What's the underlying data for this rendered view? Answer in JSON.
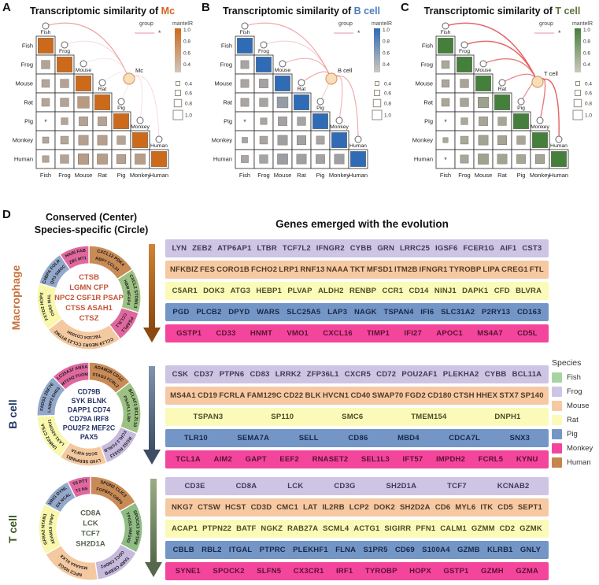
{
  "panels": {
    "a": "A",
    "b": "B",
    "c": "C",
    "d": "D"
  },
  "chart_data": [
    {
      "type": "heatmap",
      "panel": "A",
      "title_prefix": "Transcriptomic similarity of",
      "cell_type": "Mc",
      "accent": "#d4631c",
      "theme": "#cc6a1c",
      "species": [
        "Fish",
        "Frog",
        "Mouse",
        "Rat",
        "Pig",
        "Monkey",
        "Human"
      ],
      "matrix": [
        [
          1.0
        ],
        [
          0.45,
          1.0
        ],
        [
          0.4,
          0.45,
          1.0
        ],
        [
          0.4,
          0.45,
          0.7,
          1.0
        ],
        [
          0.12,
          0.32,
          0.48,
          0.48,
          1.0
        ],
        [
          0.28,
          0.4,
          0.55,
          0.55,
          0.45,
          1.0
        ],
        [
          0.3,
          0.45,
          0.62,
          0.6,
          0.5,
          0.6,
          1.0
        ]
      ],
      "starred": [
        [
          4,
          0
        ]
      ],
      "node_label": "Mc",
      "node_pos": [
        164,
        100
      ],
      "link_strengths": [
        0.55,
        0.2,
        0.12,
        0.1,
        0.12,
        0.15,
        0.2
      ],
      "legend": {
        "group_label": "group",
        "group_marker": "*",
        "scale_label": "mantelR",
        "color_ticks": [
          "1.0",
          "0.8",
          "0.6",
          "0.4"
        ],
        "size_ticks": [
          "0.4",
          "0.6",
          "0.8",
          "1.0"
        ]
      }
    },
    {
      "type": "heatmap",
      "panel": "B",
      "title_prefix": "Transcriptomic similarity of",
      "cell_type": "B cell",
      "accent": "#4a7cc0",
      "theme": "#2f6cb5",
      "species": [
        "Fish",
        "Frog",
        "Mouse",
        "Rat",
        "Pig",
        "Monkey",
        "Human"
      ],
      "matrix": [
        [
          1.0
        ],
        [
          0.42,
          1.0
        ],
        [
          0.42,
          0.48,
          1.0
        ],
        [
          0.42,
          0.45,
          0.65,
          1.0
        ],
        [
          0.12,
          0.3,
          0.48,
          0.45,
          1.0
        ],
        [
          0.22,
          0.4,
          0.55,
          0.5,
          0.42,
          1.0
        ],
        [
          0.35,
          0.45,
          0.6,
          0.55,
          0.48,
          0.55,
          1.0
        ]
      ],
      "starred": [
        [
          4,
          0
        ]
      ],
      "node_label": "B cell",
      "node_pos": [
        168,
        100
      ],
      "link_strengths": [
        0.5,
        0.3,
        0.45,
        0.5,
        0.3,
        0.45,
        0.5
      ],
      "legend": {
        "group_label": "group",
        "group_marker": "*",
        "scale_label": "mantelR",
        "color_ticks": [
          "1.0",
          "0.8",
          "0.6",
          "0.4"
        ],
        "size_ticks": [
          "0.4",
          "0.6",
          "0.8",
          "1.0"
        ]
      }
    },
    {
      "type": "heatmap",
      "panel": "C",
      "title_prefix": "Transcriptomic similarity of",
      "cell_type": "T cell",
      "accent": "#5e7140",
      "theme": "#44803c",
      "species": [
        "Fish",
        "Frog",
        "Mouse",
        "Rat",
        "Pig",
        "Monkey",
        "Human"
      ],
      "matrix": [
        [
          1.0
        ],
        [
          0.4,
          1.0
        ],
        [
          0.38,
          0.45,
          1.0
        ],
        [
          0.4,
          0.45,
          0.62,
          1.0
        ],
        [
          0.12,
          0.32,
          0.48,
          0.45,
          1.0
        ],
        [
          0.18,
          0.4,
          0.55,
          0.5,
          0.45,
          1.0
        ],
        [
          0.12,
          0.42,
          0.6,
          0.55,
          0.48,
          0.5,
          1.0
        ]
      ],
      "starred": [
        [
          4,
          0
        ],
        [
          6,
          0
        ]
      ],
      "node_label": "T cell",
      "node_pos": [
        175,
        104
      ],
      "link_strengths": [
        0.85,
        0.85,
        0.75,
        0.7,
        0.65,
        0.75,
        0.85
      ],
      "legend": {
        "group_label": "group",
        "group_marker": "*",
        "scale_label": "mantelR",
        "color_ticks": [
          "1.0",
          "0.8",
          "0.6",
          "0.4"
        ],
        "size_ticks": [
          "0.4",
          "0.6",
          "0.8",
          "1.0"
        ]
      }
    }
  ],
  "panel_d": {
    "left_header_line1": "Conserved (Center)",
    "left_header_line2": "Species-specific (Circle)",
    "right_header": "Genes emerged with the evolution",
    "species_legend": {
      "title": "Species",
      "items": [
        {
          "name": "Fish",
          "color": "#a9d3a2"
        },
        {
          "name": "Frog",
          "color": "#cec4e4"
        },
        {
          "name": "Mouse",
          "color": "#f6c9a2"
        },
        {
          "name": "Rat",
          "color": "#fbfab8"
        },
        {
          "name": "Pig",
          "color": "#7496c6"
        },
        {
          "name": "Monkey",
          "color": "#f4459d"
        },
        {
          "name": "Human",
          "color": "#c5854c"
        }
      ]
    },
    "cell_types": [
      {
        "name": "Macrophage",
        "label_color": "#c8743c",
        "center_color": "#c4563a",
        "center_genes": [
          "CTSB",
          "LGMN  CFP",
          "NPC2 CSF1R PSAP",
          "CTSS  ASAH1",
          "CTSZ"
        ],
        "arrow_colors": [
          "#cf8434",
          "#8a4a10"
        ],
        "ring": [
          {
            "color": "#c98b55",
            "outer": "CXCL12  PDK4",
            "inner": "RBP7 CCL24",
            "start": 0,
            "end": 57
          },
          {
            "color": "#9cc183",
            "outer": "CXCL2 STOML3",
            "inner": "HBM MFAP4",
            "start": 57,
            "end": 107
          },
          {
            "color": "#e0689f",
            "outer": "PSAPL1",
            "inner": "CCL3L1",
            "start": 107,
            "end": 143
          },
          {
            "color": "#f4c9a0",
            "outer": "CCL19 NEGR1 CCL23 IFITM2",
            "inner": "TBC1D4 CD300H",
            "start": 143,
            "end": 232
          },
          {
            "color": "#f8f7ac",
            "outer": "FXYD2  HOPX",
            "inner": "OSR2  MAL",
            "start": 232,
            "end": 286
          },
          {
            "color": "#93a8cb",
            "outer": "C4BPA FOLR1",
            "inner": "AQP3 SMOC1",
            "start": 286,
            "end": 326
          },
          {
            "color": "#e0689f",
            "outer": "JCHAIN FABP4",
            "inner": "MZB1 MT1E",
            "start": 326,
            "end": 360
          }
        ],
        "rows": [
          {
            "color": "#cec4e4",
            "text_color": "#3f3b55",
            "genes": [
              "LYN",
              "ZEB2",
              "ATP6AP1",
              "LTBR",
              "TCF7L2",
              "IFNGR2",
              "CYBB",
              "GRN",
              "LRRC25",
              "IGSF6",
              "FCER1G",
              "AIF1",
              "CST3"
            ]
          },
          {
            "color": "#f6c9a2",
            "text_color": "#4f3a28",
            "genes": [
              "NFKBIZ",
              "FES",
              "CORO1B",
              "FCHO2",
              "LRP1",
              "RNF13",
              "NAAA",
              "TKT",
              "MFSD1",
              "ITM2B",
              "IFNGR1",
              "TYROBP",
              "LIPA",
              "CREG1",
              "FTL"
            ]
          },
          {
            "color": "#fbfab8",
            "text_color": "#4c4c28",
            "genes": [
              "C5AR1",
              "DOK3",
              "ATG3",
              "HEBP1",
              "PLVAP",
              "ALDH2",
              "RENBP",
              "CCR1",
              "CD14",
              "NINJ1",
              "DAPK1",
              "CFD",
              "BLVRA"
            ]
          },
          {
            "color": "#7496c6",
            "text_color": "#182848",
            "genes": [
              "PGD",
              "PLCB2",
              "DPYD",
              "WARS",
              "SLC25A5",
              "LAP3",
              "NAGK",
              "TSPAN4",
              "IFI6",
              "SLC31A2",
              "P2RY13",
              "CD163"
            ]
          },
          {
            "color": "#f4459d",
            "text_color": "#571232",
            "genes": [
              "GSTP1",
              "CD33",
              "HNMT",
              "VMO1",
              "CXCL16",
              "TIMP1",
              "IFI27",
              "APOC1",
              "MS4A7",
              "CD5L"
            ]
          }
        ]
      },
      {
        "name": "B cell",
        "label_color": "#203864",
        "center_color": "#27356b",
        "center_genes": [
          "CD79B",
          "SYK  BLNK",
          "DAPP1  CD74",
          "CD79A  IRF8",
          "POU2F2 MEF2C",
          "PAX5"
        ],
        "arrow_colors": [
          "#8193ad",
          "#3d4d66"
        ],
        "ring": [
          {
            "color": "#c98b55",
            "outer": "ADAM28  CD1C",
            "inner": "STAG3 FCRL2",
            "start": 0,
            "end": 52
          },
          {
            "color": "#9cc183",
            "outer": "BCLAF1 BCL2L10",
            "inner": "PSAPL1  LBP",
            "start": 52,
            "end": 112
          },
          {
            "color": "#c6badd",
            "outer": "RGS2 RGS13",
            "inner": "FCRL3 FCRLB",
            "start": 112,
            "end": 160
          },
          {
            "color": "#f4c9a0",
            "outer": "LY6D SERPINB1",
            "inner": "SCG5 H3F3A",
            "start": 160,
            "end": 214
          },
          {
            "color": "#f8f7ac",
            "outer": "UHRF2 CTSA",
            "inner": "LAX1 ADGRV1",
            "start": 214,
            "end": 268
          },
          {
            "color": "#93a8cb",
            "outer": "FADS3 ZNF76",
            "inner": "LAMP3 EHD3",
            "start": 268,
            "end": 316
          },
          {
            "color": "#e0689f",
            "outer": "SLC25A37 ANXA4",
            "inner": "MTCH2 FUOM",
            "start": 316,
            "end": 360
          }
        ],
        "rows": [
          {
            "color": "#cec4e4",
            "text_color": "#3f3b55",
            "genes": [
              "CSK",
              "CD37",
              "PTPN6",
              "CD83",
              "LRRK2",
              "ZFP36L1",
              "CXCR5",
              "CD72",
              "POU2AF1",
              "PLEKHA2",
              "CYBB",
              "BCL11A"
            ]
          },
          {
            "color": "#f6c9a2",
            "text_color": "#4f3a28",
            "genes": [
              "MS4A1",
              "CD19",
              "FCRLA",
              "FAM129C",
              "CD22",
              "BLK",
              "HVCN1",
              "CD40",
              "SWAP70",
              "FGD2",
              "CD180",
              "CTSH",
              "HHEX",
              "STX7",
              "SP140"
            ]
          },
          {
            "color": "#fbfab8",
            "text_color": "#4c4c28",
            "genes": [
              "TSPAN3",
              "SP110",
              "SMC6",
              "TMEM154",
              "DNPH1"
            ]
          },
          {
            "color": "#7496c6",
            "text_color": "#182848",
            "genes": [
              "TLR10",
              "SEMA7A",
              "SELL",
              "CD86",
              "MBD4",
              "CDCA7L",
              "SNX3"
            ]
          },
          {
            "color": "#f4459d",
            "text_color": "#571232",
            "genes": [
              "TCL1A",
              "AIM2",
              "GAPT",
              "EEF2",
              "RNASET2",
              "SEL1L3",
              "IFT57",
              "IMPDH2",
              "FCRL5",
              "KYNU"
            ]
          }
        ]
      },
      {
        "name": "T cell",
        "label_color": "#3c5a23",
        "center_color": "#55664f",
        "center_genes": [
          "CD8A",
          "LCK",
          "TCF7",
          "SH2D1A"
        ],
        "arrow_colors": [
          "#9aad85",
          "#55684a"
        ],
        "ring": [
          {
            "color": "#c98b55",
            "outer": "SPON2  CLIC3",
            "inner": "FGFBP2 GBP5",
            "start": 0,
            "end": 60
          },
          {
            "color": "#8fbc83",
            "outer": "SPOCK3 SFTPB",
            "inner": "TPGS1 HMGN2",
            "start": 60,
            "end": 118
          },
          {
            "color": "#c6badd",
            "outer": "TARP CEBPB",
            "inner": "ODC1 CNDP2",
            "start": 118,
            "end": 172
          },
          {
            "color": "#f4c9a0",
            "outer": "NPC2  NSG2",
            "inner": "MS4A6A KLK8",
            "start": 172,
            "end": 240
          },
          {
            "color": "#f8f7ac",
            "outer": "GFRA2 NTAN1",
            "inner": "ADAM19 TPMT",
            "start": 240,
            "end": 298
          },
          {
            "color": "#93a8cb",
            "outer": "PVRIG DYNLT3",
            "inner": "RDX NCALD",
            "start": 298,
            "end": 334
          },
          {
            "color": "#e0689f",
            "outer": "CST6 PTTG1",
            "inner": "BST2 NSG1",
            "start": 334,
            "end": 360
          }
        ],
        "rows": [
          {
            "color": "#cec4e4",
            "text_color": "#3f3b55",
            "genes": [
              "CD3E",
              "CD8A",
              "LCK",
              "CD3G",
              "SH2D1A",
              "TCF7",
              "KCNAB2"
            ]
          },
          {
            "color": "#f6c9a2",
            "text_color": "#4f3a28",
            "genes": [
              "NKG7",
              "CTSW",
              "HCST",
              "CD3D",
              "CMC1",
              "LAT",
              "IL2RB",
              "LCP2",
              "DOK2",
              "SH2D2A",
              "CD6",
              "MYL6",
              "ITK",
              "CD5",
              "SEPT1"
            ]
          },
          {
            "color": "#fbfab8",
            "text_color": "#4c4c28",
            "genes": [
              "ACAP1",
              "PTPN22",
              "BATF",
              "NGKZ",
              "RAB27A",
              "SCML4",
              "ACTG1",
              "SIGIRR",
              "PFN1",
              "CALM1",
              "GZMM",
              "CD2",
              "GZMK"
            ]
          },
          {
            "color": "#7496c6",
            "text_color": "#182848",
            "genes": [
              "CBLB",
              "RBL2",
              "ITGAL",
              "PTPRC",
              "PLEKHF1",
              "FLNA",
              "S1PR5",
              "CD69",
              "S100A4",
              "GZMB",
              "KLRB1",
              "GNLY"
            ]
          },
          {
            "color": "#f4459d",
            "text_color": "#571232",
            "genes": [
              "SYNE1",
              "SPOCK2",
              "SLFN5",
              "CX3CR1",
              "IRF1",
              "TYROBP",
              "HOPX",
              "GSTP1",
              "GZMH",
              "GZMA"
            ]
          }
        ]
      }
    ]
  }
}
